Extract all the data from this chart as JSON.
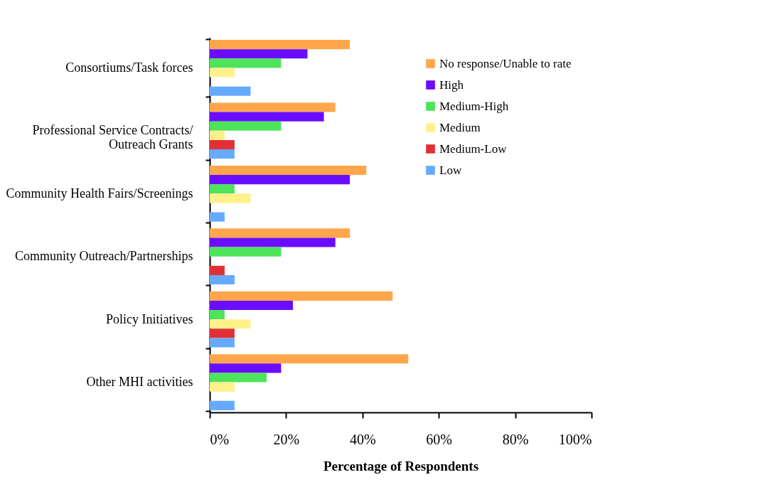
{
  "chart_data": {
    "type": "bar",
    "orientation": "horizontal",
    "xlabel": "Percentage of Respondents",
    "categories": [
      "Consortiums/Task forces",
      "Professional Service Contracts/ Outreach Grants",
      "Community Health Fairs/Screenings",
      "Community Outreach/Partnerships",
      "Policy Initiatives",
      "Other MHI activities"
    ],
    "series": [
      {
        "name": "No response/Unable to rate",
        "color": "#ffa64d",
        "values": [
          36.7,
          32.9,
          41.0,
          36.7,
          47.9,
          52.0
        ]
      },
      {
        "name": "High",
        "color": "#6a0dff",
        "values": [
          25.6,
          29.9,
          36.7,
          32.9,
          21.8,
          18.7
        ]
      },
      {
        "name": "Medium-High",
        "color": "#4de35a",
        "values": [
          18.7,
          18.7,
          6.5,
          18.7,
          3.9,
          14.9
        ]
      },
      {
        "name": "Medium",
        "color": "#fff18a",
        "values": [
          6.5,
          3.9,
          10.7,
          0,
          10.7,
          6.5
        ]
      },
      {
        "name": "Medium-Low",
        "color": "#e03036",
        "values": [
          0,
          6.5,
          0,
          3.9,
          6.5,
          0
        ]
      },
      {
        "name": "Low",
        "color": "#66aaff",
        "values": [
          10.7,
          6.5,
          3.9,
          6.5,
          6.5,
          6.5
        ]
      }
    ],
    "xlim": [
      0,
      100
    ],
    "xticks": [
      {
        "value": 0,
        "label": "0%"
      },
      {
        "value": 20,
        "label": "20%"
      },
      {
        "value": 40,
        "label": "40%"
      },
      {
        "value": 60,
        "label": "60%"
      },
      {
        "value": 80,
        "label": "80%"
      },
      {
        "value": 100,
        "label": "100%"
      }
    ],
    "grid": false,
    "legend": "top right"
  }
}
